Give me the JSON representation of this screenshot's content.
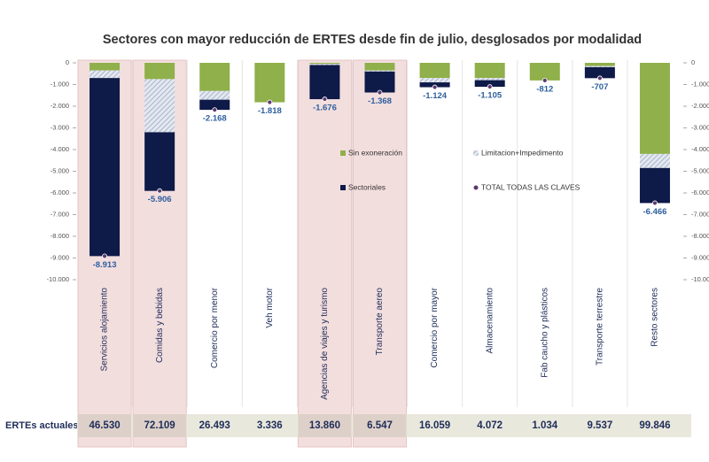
{
  "chart_data": {
    "type": "bar",
    "stacked": true,
    "title": "Sectores con mayor reducción de ERTES desde fin de julio, desglosados por modalidad",
    "categories": [
      "Servicios alojamiento",
      "Comidas y bebidas",
      "Comercio por menor",
      "Veh motor",
      "Agencias de viajes y turismo",
      "Transporte aereo",
      "Comercio por mayor",
      "Almacenamiento",
      "Fab caucho y plásticos",
      "Transporte terrestre",
      "Resto sectores"
    ],
    "series": [
      {
        "name": "Sin exoneración",
        "color": "#8fb04a",
        "values": [
          -350,
          -750,
          -1300,
          -1818,
          -50,
          -350,
          -700,
          -700,
          -812,
          -150,
          -4200
        ]
      },
      {
        "name": "Limitacion+Impedimento",
        "color": "#9aa8c4",
        "hatched": true,
        "values": [
          -350,
          -2450,
          -400,
          0,
          -50,
          -50,
          -200,
          -100,
          0,
          -50,
          -650
        ]
      },
      {
        "name": "Sectoriales",
        "color": "#0e1a47",
        "values": [
          -8213,
          -2706,
          -468,
          0,
          -1576,
          -968,
          -224,
          -305,
          0,
          -507,
          -1616
        ]
      }
    ],
    "totals": {
      "name": "TOTAL TODAS LAS CLAVES",
      "color": "#5b3a6e",
      "values": [
        -8913,
        -5906,
        -2168,
        -1818,
        -1676,
        -1368,
        -1124,
        -1105,
        -812,
        -707,
        -6466
      ],
      "value_labels": [
        "-8.913",
        "-5.906",
        "-2.168",
        "-1.818",
        "-1.676",
        "-1.368",
        "-1.124",
        "-1.105",
        "-812",
        "-707",
        "-6.466"
      ]
    },
    "ylim": [
      -10000,
      0
    ],
    "yticks": [
      0,
      {
        "value": -1000,
        "label": "-1.000"
      },
      {
        "value": -2000,
        "label": "-2.000"
      },
      {
        "value": -3000,
        "label": "-3.000"
      },
      {
        "value": -4000,
        "label": "-4.000"
      },
      {
        "value": -5000,
        "label": "-5.000"
      },
      {
        "value": -6000,
        "label": "-6.000"
      },
      {
        "value": -7000,
        "label": "-7.000"
      },
      {
        "value": -8000,
        "label": "-8.000"
      },
      {
        "value": -9000,
        "label": "-9.000"
      },
      {
        "value": -10000,
        "label": "-10.000"
      }
    ],
    "highlighted": [
      0,
      1,
      4,
      5
    ],
    "highlight_color": "#f3dede",
    "ertes_actuales": {
      "label": "ERTEs actuales",
      "values": [
        46530,
        72109,
        26493,
        3336,
        13860,
        6547,
        16059,
        4072,
        1034,
        9537,
        99846
      ],
      "value_labels": [
        "46.530",
        "72.109",
        "26.493",
        "3.336",
        "13.860",
        "6.547",
        "16.059",
        "4.072",
        "1.034",
        "9.537",
        "99.846"
      ]
    }
  }
}
